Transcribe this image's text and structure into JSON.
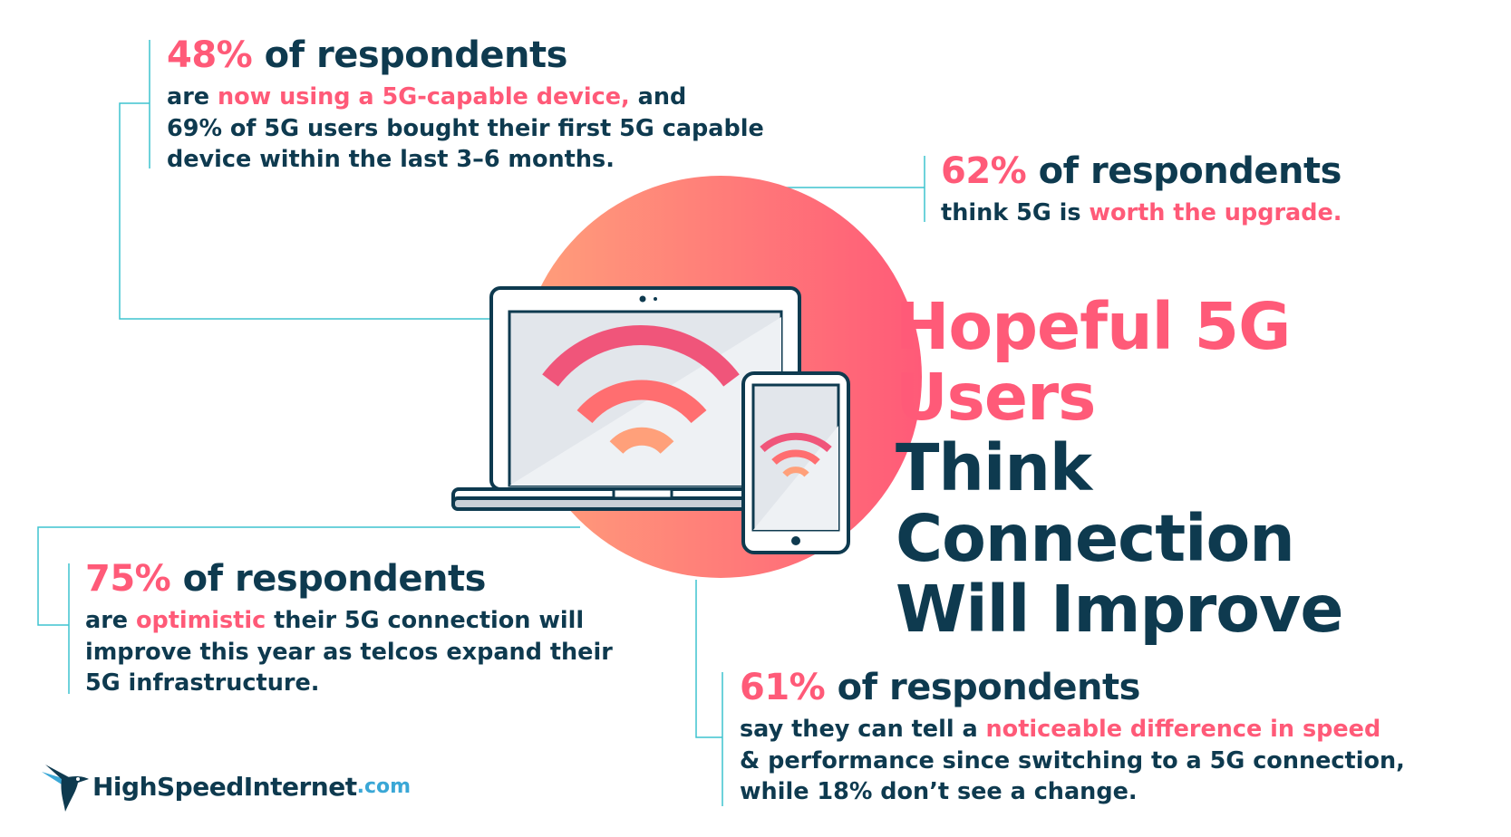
{
  "title": {
    "line1": "Hopeful 5G Users",
    "line2": "Think Connection",
    "line3": "Will Improve"
  },
  "stats": {
    "s48": {
      "pct": "48%",
      "head": " of respondents",
      "b1": "are ",
      "b1_hl": "now using a 5G-capable device,",
      "b1_end": " and",
      "b2": "69% of 5G users bought their first 5G capable",
      "b3": "device within the last 3–6 months."
    },
    "s62": {
      "pct": "62%",
      "head": " of respondents",
      "b1": "think 5G is ",
      "b1_hl": "worth the upgrade."
    },
    "s75": {
      "pct": "75%",
      "head": " of respondents",
      "b1": "are ",
      "b1_hl": "optimistic",
      "b1_end": " their 5G connection will",
      "b2": "improve this year as telcos expand their",
      "b3": "5G infrastructure."
    },
    "s61": {
      "pct": "61%",
      "head": " of respondents",
      "b1": "say they can tell a ",
      "b1_hl": "noticeable difference in speed",
      "b2": "& performance since switching to a 5G connection,",
      "b3": "while 18% don’t see a change."
    }
  },
  "logo": {
    "name": "HighSpeedInternet",
    "domain": ".com",
    "icon": "hummingbird-icon"
  },
  "colors": {
    "accent": "#ff5a78",
    "navy": "#0e3a4f",
    "line": "#3ec4cf"
  }
}
